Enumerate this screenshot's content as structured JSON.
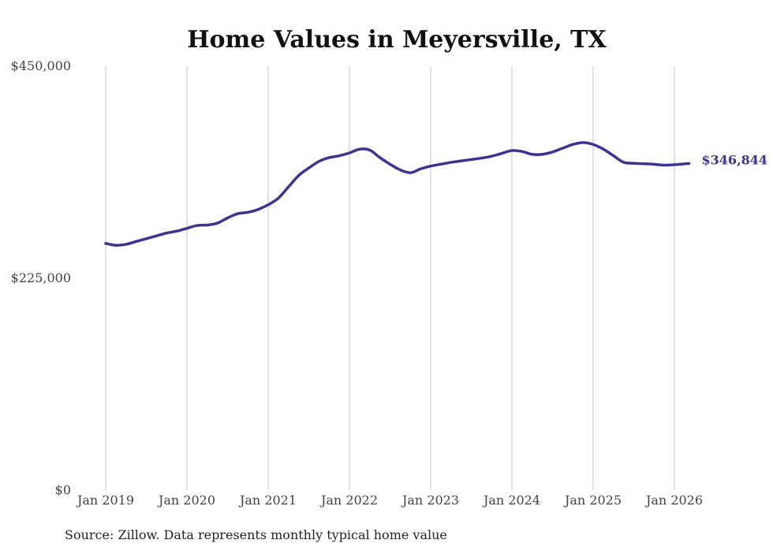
{
  "chart_data": {
    "type": "line",
    "title": "Home Values in Meyersville, TX",
    "source_note": "Source: Zillow. Data represents monthly typical home value",
    "ylim": [
      0,
      450000
    ],
    "yticks": [
      {
        "value": 0,
        "label": "$0"
      },
      {
        "value": 225000,
        "label": "$225,000"
      },
      {
        "value": 450000,
        "label": "$450,000"
      }
    ],
    "xticks": [
      {
        "x": 2019.0,
        "label": "Jan 2019"
      },
      {
        "x": 2020.0,
        "label": "Jan 2020"
      },
      {
        "x": 2021.0,
        "label": "Jan 2021"
      },
      {
        "x": 2022.0,
        "label": "Jan 2022"
      },
      {
        "x": 2023.0,
        "label": "Jan 2023"
      },
      {
        "x": 2024.0,
        "label": "Jan 2024"
      },
      {
        "x": 2025.0,
        "label": "Jan 2025"
      },
      {
        "x": 2026.0,
        "label": "Jan 2026"
      }
    ],
    "xlim": [
      2019.0,
      2026.0
    ],
    "grid": {
      "vertical": true,
      "horizontal": false
    },
    "line_color": "#3d3490",
    "end_label": "$346,844",
    "series": [
      {
        "name": "Typical home value",
        "x": [
          2019.0,
          2019.125,
          2019.25,
          2019.375,
          2019.5,
          2019.625,
          2019.75,
          2019.875,
          2020.0,
          2020.125,
          2020.25,
          2020.375,
          2020.5,
          2020.625,
          2020.75,
          2020.875,
          2021.0,
          2021.125,
          2021.25,
          2021.375,
          2021.5,
          2021.625,
          2021.75,
          2021.875,
          2022.0,
          2022.125,
          2022.25,
          2022.375,
          2022.5,
          2022.625,
          2022.75,
          2022.875,
          2023.0,
          2023.125,
          2023.25,
          2023.375,
          2023.5,
          2023.625,
          2023.75,
          2023.875,
          2024.0,
          2024.125,
          2024.25,
          2024.375,
          2024.5,
          2024.625,
          2024.75,
          2024.875,
          2025.0,
          2025.125,
          2025.25,
          2025.375,
          2025.5,
          2025.625,
          2025.75,
          2025.875,
          2026.0,
          2026.18
        ],
        "values": [
          262000,
          260000,
          261000,
          264000,
          267000,
          270000,
          273000,
          275000,
          278000,
          281000,
          281500,
          283500,
          289000,
          293500,
          295000,
          298000,
          303000,
          310000,
          322000,
          334000,
          342000,
          349000,
          353000,
          355000,
          358000,
          362000,
          361000,
          353000,
          346000,
          340000,
          337000,
          341000,
          344000,
          346000,
          348000,
          349500,
          351000,
          352500,
          354500,
          357500,
          360500,
          359500,
          356500,
          356500,
          359000,
          363000,
          367000,
          369000,
          367000,
          362000,
          355000,
          348000,
          347000,
          346500,
          346000,
          345000,
          345500,
          346844
        ]
      }
    ]
  }
}
